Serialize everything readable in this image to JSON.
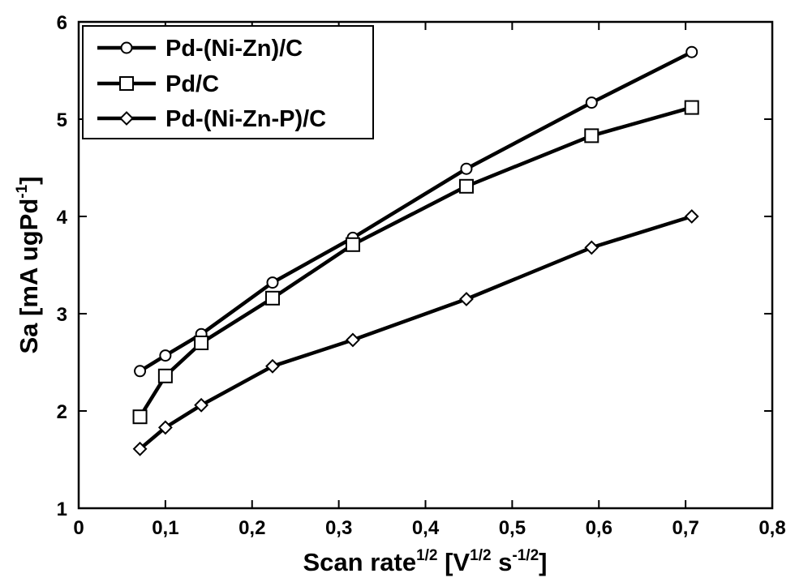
{
  "chart_data": {
    "type": "line",
    "title": "",
    "xlabel": {
      "base": "Scan rate",
      "sup1": "1/2",
      "mid": " [V",
      "sup2": "1/2",
      "mid2": " s",
      "sup3": "-1/2",
      "end": "]"
    },
    "ylabel": {
      "base": "Sa [mA ugPd",
      "sup": "-1",
      "end": "]"
    },
    "xlim": [
      0,
      0.8
    ],
    "ylim": [
      1,
      6
    ],
    "x_ticks": [
      0,
      0.1,
      0.2,
      0.3,
      0.4,
      0.5,
      0.6,
      0.7,
      0.8
    ],
    "x_tick_labels": [
      "0",
      "0,1",
      "0,2",
      "0,3",
      "0,4",
      "0,5",
      "0,6",
      "0,7",
      "0,8"
    ],
    "y_ticks": [
      1,
      2,
      3,
      4,
      5,
      6
    ],
    "y_tick_labels": [
      "1",
      "2",
      "3",
      "4",
      "5",
      "6"
    ],
    "x": [
      0.0707,
      0.1,
      0.1414,
      0.2236,
      0.3162,
      0.4472,
      0.5916,
      0.7071
    ],
    "series": [
      {
        "name": "Pd-(Ni-Zn)/C",
        "marker": "circle",
        "values": [
          2.41,
          2.57,
          2.79,
          3.32,
          3.78,
          4.49,
          5.17,
          5.69
        ]
      },
      {
        "name": "Pd/C",
        "marker": "square",
        "values": [
          1.94,
          2.36,
          2.7,
          3.16,
          3.71,
          4.31,
          4.83,
          5.12
        ]
      },
      {
        "name": "Pd-(Ni-Zn-P)/C",
        "marker": "diamond",
        "values": [
          1.61,
          1.83,
          2.06,
          2.46,
          2.73,
          3.15,
          3.68,
          4.0
        ]
      }
    ],
    "legend_position": "top-left",
    "grid": false,
    "colors": {
      "line": "#000000",
      "marker_fill": "#ffffff",
      "background": "#ffffff"
    }
  }
}
